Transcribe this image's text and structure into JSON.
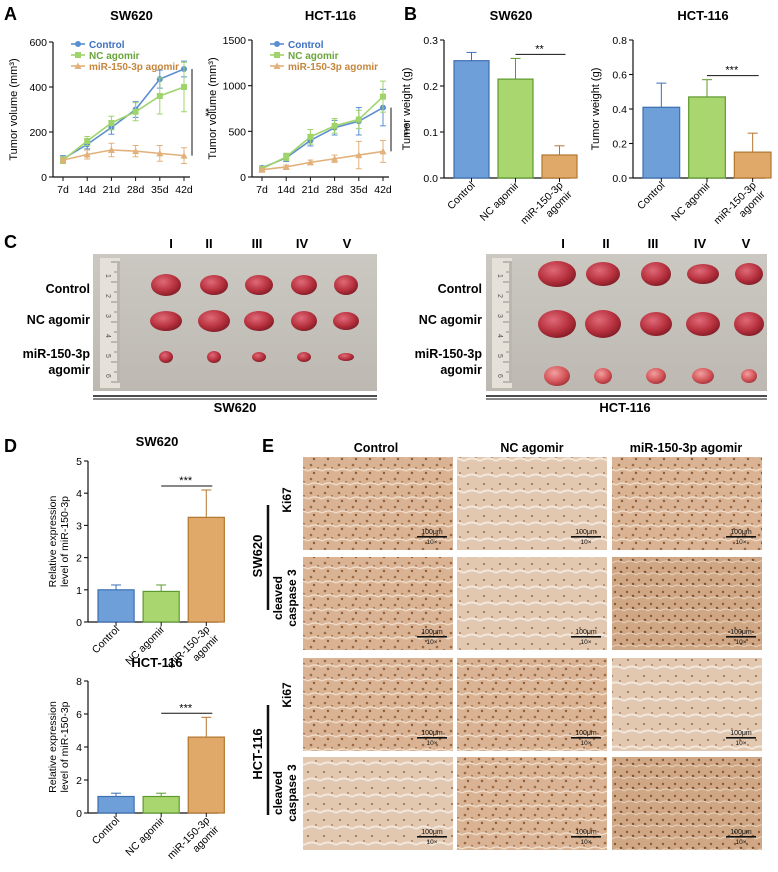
{
  "panels": {
    "A": "A",
    "B": "B",
    "C": "C",
    "D": "D",
    "E": "E"
  },
  "colors": {
    "control": "#6f9fd8",
    "control_edge": "#3c6fb4",
    "nc": "#a9d66e",
    "nc_edge": "#5d9a2e",
    "mir": "#e0a96a",
    "mir_edge": "#b2762f",
    "line_control": "#5b8fd0",
    "line_nc": "#9fd46a",
    "line_mir": "#e2b07a"
  },
  "chart_data": [
    {
      "id": "A1",
      "type": "line",
      "title": "SW620",
      "ylabel": "Tumor volume (mm³)",
      "xlabel": "",
      "categories": [
        "7d",
        "14d",
        "21d",
        "28d",
        "35d",
        "42d"
      ],
      "ylim": [
        0,
        600
      ],
      "yticks": [
        "0",
        "200",
        "400",
        "600"
      ],
      "series": [
        {
          "name": "Control",
          "values": [
            80,
            145,
            220,
            300,
            435,
            480
          ],
          "err": [
            15,
            20,
            30,
            35,
            40,
            35
          ]
        },
        {
          "name": "NC agomir",
          "values": [
            75,
            160,
            240,
            290,
            360,
            400
          ],
          "err": [
            15,
            20,
            30,
            40,
            80,
            110
          ]
        },
        {
          "name": "miR-150-3p agomir",
          "values": [
            75,
            100,
            120,
            115,
            105,
            95
          ],
          "err": [
            10,
            20,
            30,
            25,
            35,
            35
          ]
        }
      ],
      "sig": "**"
    },
    {
      "id": "A2",
      "type": "line",
      "title": "HCT-116",
      "ylabel": "Tumor volume (mm³)",
      "xlabel": "",
      "categories": [
        "7d",
        "14d",
        "21d",
        "28d",
        "35d",
        "42d"
      ],
      "ylim": [
        0,
        1500
      ],
      "yticks": [
        "0",
        "500",
        "1000",
        "1500"
      ],
      "series": [
        {
          "name": "Control",
          "values": [
            100,
            210,
            400,
            540,
            610,
            760
          ],
          "err": [
            20,
            40,
            60,
            80,
            150,
            200
          ]
        },
        {
          "name": "NC agomir",
          "values": [
            90,
            220,
            440,
            560,
            630,
            880
          ],
          "err": [
            20,
            40,
            80,
            80,
            100,
            170
          ]
        },
        {
          "name": "miR-150-3p agomir",
          "values": [
            80,
            110,
            160,
            200,
            240,
            280
          ],
          "err": [
            15,
            20,
            25,
            40,
            150,
            120
          ]
        }
      ],
      "sig": "***"
    },
    {
      "id": "B1",
      "type": "bar",
      "title": "SW620",
      "ylabel": "Tumor weight (g)",
      "categories": [
        "Control",
        "NC agomir",
        "miR-150-3p agomir"
      ],
      "values": [
        0.255,
        0.215,
        0.05
      ],
      "err": [
        0.018,
        0.045,
        0.02
      ],
      "ylim": [
        0,
        0.3
      ],
      "yticks": [
        "0.0",
        "0.1",
        "0.2",
        "0.3"
      ],
      "sig": "**"
    },
    {
      "id": "B2",
      "type": "bar",
      "title": "HCT-116",
      "ylabel": "Tumor weight (g)",
      "categories": [
        "Control",
        "NC agomir",
        "miR-150-3p agomir"
      ],
      "values": [
        0.41,
        0.47,
        0.15
      ],
      "err": [
        0.14,
        0.1,
        0.11
      ],
      "ylim": [
        0,
        0.8
      ],
      "yticks": [
        "0.0",
        "0.2",
        "0.4",
        "0.6",
        "0.8"
      ],
      "sig": "***"
    },
    {
      "id": "D1",
      "type": "bar",
      "title": "SW620",
      "ylabel": "Relative expression level of miR-150-3p",
      "categories": [
        "Control",
        "NC agomir",
        "miR-150-3p agomir"
      ],
      "values": [
        1.0,
        0.95,
        3.25
      ],
      "err": [
        0.15,
        0.2,
        0.85
      ],
      "ylim": [
        0,
        5
      ],
      "yticks": [
        "0",
        "1",
        "2",
        "3",
        "4",
        "5"
      ],
      "sig": "***"
    },
    {
      "id": "D2",
      "type": "bar",
      "title": "HCT-116",
      "ylabel": "Relative expression level of miR-150-3p",
      "categories": [
        "Control",
        "NC agomir",
        "miR-150-3p agomir"
      ],
      "values": [
        1.0,
        1.0,
        4.6
      ],
      "err": [
        0.2,
        0.2,
        1.2
      ],
      "ylim": [
        0,
        8
      ],
      "yticks": [
        "0",
        "2",
        "4",
        "6",
        "8"
      ],
      "sig": "***"
    }
  ],
  "legend": [
    "Control",
    "NC agomir",
    "miR-150-3p agomir"
  ],
  "panelC": {
    "roman": [
      "I",
      "II",
      "III",
      "IV",
      "V"
    ],
    "rows": [
      "Control",
      "NC agomir",
      "miR-150-3p",
      "agomir"
    ],
    "left_caption": "SW620",
    "right_caption": "HCT-116",
    "ruler": [
      "1",
      "2",
      "3",
      "4",
      "5",
      "6"
    ]
  },
  "panelE": {
    "columns": [
      "Control",
      "NC agomir",
      "miR-150-3p agomir"
    ],
    "groups": [
      "SW620",
      "HCT-116"
    ],
    "stains": [
      "Ki67",
      "cleaved",
      "caspase 3"
    ],
    "scale": "100μm",
    "mag": "10×"
  }
}
